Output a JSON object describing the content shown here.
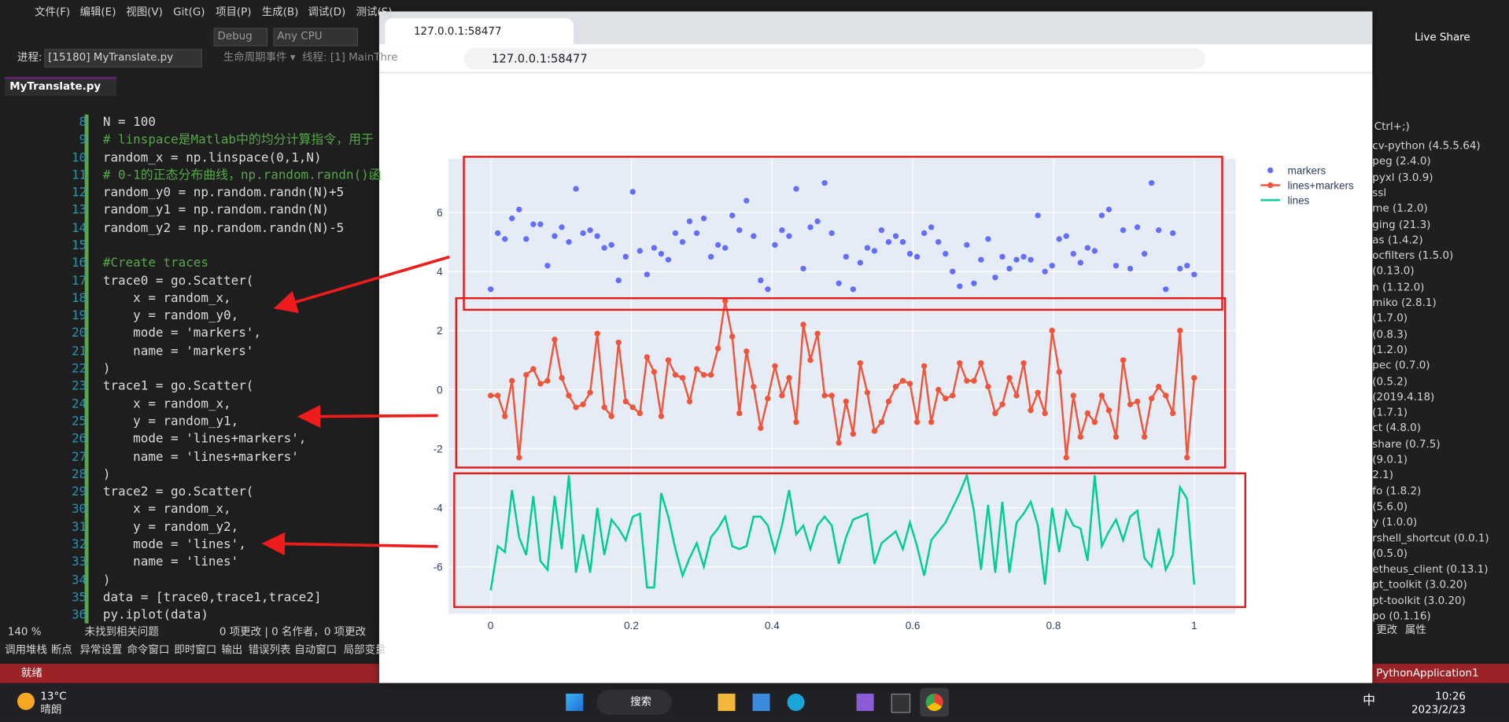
{
  "ide": {
    "menu": [
      "文件(F)",
      "编辑(E)",
      "视图(V)",
      "Git(G)",
      "项目(P)",
      "生成(B)",
      "调试(D)",
      "测试(S)"
    ],
    "config": "Debug",
    "platform": "Any CPU",
    "process_label": "进程:",
    "process": "[15180] MyTranslate.py",
    "thread": "生命周期事件 ▾  线程: [1] MainThre",
    "tab": "MyTranslate.py",
    "code": [
      {
        "line": 8,
        "text": "N = 100"
      },
      {
        "line": 9,
        "text": "# linspace是Matlab中的均分计算指令，用于"
      },
      {
        "line": 10,
        "text": "random_x = np.linspace(0,1,N)"
      },
      {
        "line": 11,
        "text": "# 0-1的正态分布曲线，np.random.randn()函"
      },
      {
        "line": 12,
        "text": "random_y0 = np.random.randn(N)+5"
      },
      {
        "line": 13,
        "text": "random_y1 = np.random.randn(N)"
      },
      {
        "line": 14,
        "text": "random_y2 = np.random.randn(N)-5"
      },
      {
        "line": 15
      },
      {
        "line": 16,
        "text": "#Create traces"
      },
      {
        "line": 17,
        "text": "trace0 = go.Scatter("
      },
      {
        "line": 18,
        "text": "    x = random_x,"
      },
      {
        "line": 19,
        "text": "    y = random_y0,"
      },
      {
        "line": 20,
        "text": "    mode = 'markers',"
      },
      {
        "line": 21,
        "text": "    name = 'markers'"
      },
      {
        "line": 22,
        "text": ")"
      },
      {
        "line": 23,
        "text": "trace1 = go.Scatter("
      },
      {
        "line": 24,
        "text": "    x = random_x,"
      },
      {
        "line": 25,
        "text": "    y = random_y1,"
      },
      {
        "line": 26,
        "text": "    mode = 'lines+markers',"
      },
      {
        "line": 27,
        "text": "    name = 'lines+markers'"
      },
      {
        "line": 28,
        "text": ")"
      },
      {
        "line": 29,
        "text": "trace2 = go.Scatter("
      },
      {
        "line": 30,
        "text": "    x = random_x,"
      },
      {
        "line": 31,
        "text": "    y = random_y2,"
      },
      {
        "line": 32,
        "text": "    mode = 'lines',"
      },
      {
        "line": 33,
        "text": "    name = 'lines'"
      },
      {
        "line": 34,
        "text": ")"
      },
      {
        "line": 35,
        "text": "data = [trace0,trace1,trace2]"
      },
      {
        "line": 36,
        "text": "py.iplot(data)"
      }
    ],
    "zoom": "140 %",
    "issues": "未找到相关问题",
    "changes": "0 项更改 | 0 名作者，0 项更改",
    "bottom_tabs": [
      "调用堆栈",
      "断点",
      "异常设置",
      "命令窗口",
      "即时窗口",
      "输出",
      "错误列表",
      "自动窗口",
      "局部变量"
    ],
    "status": "就绪",
    "live_share": "Live Share",
    "search_hint": "Ctrl+;)",
    "packages": [
      "cv-python (4.5.5.64)",
      "peg (2.4.0)",
      "pyxl (3.0.9)",
      "ssl",
      "me (1.2.0)",
      "ging (21.3)",
      "as (1.4.2)",
      "ocfilters (1.5.0)",
      "(0.13.0)",
      "n (1.12.0)",
      "miko (2.8.1)",
      "(1.7.0)",
      "(0.8.3)",
      "(1.2.0)",
      "pec (0.7.0)",
      "(0.5.2)",
      "(2019.4.18)",
      "(1.7.1)",
      "ct (4.8.0)",
      "share (0.7.5)",
      "(9.0.1)",
      "2.1)",
      "fo (1.8.2)",
      "(5.6.0)",
      "y (1.0.0)",
      "rshell_shortcut (0.0.1)",
      "(0.5.0)",
      "etheus_client (0.13.1)",
      "pt_toolkit (3.0.20)",
      "pt-toolkit (3.0.20)",
      "po (0.1.16)"
    ],
    "panel_tabs": [
      "更改",
      "属性"
    ],
    "project": "PythonApplication1"
  },
  "browser": {
    "tab_title": "127.0.0.1:58477",
    "url": "127.0.0.1:58477"
  },
  "chart_data": {
    "type": "scatter",
    "x": [
      0,
      0.0101,
      0.0202,
      0.0303,
      0.0404,
      0.0505,
      0.0606,
      0.0707,
      0.0808,
      0.0909,
      0.101,
      0.1111,
      0.1212,
      0.1313,
      0.1414,
      0.1515,
      0.1616,
      0.1717,
      0.1818,
      0.1919,
      0.202,
      0.2121,
      0.2222,
      0.2323,
      0.2424,
      0.2525,
      0.2626,
      0.2727,
      0.2828,
      0.2929,
      0.303,
      0.3131,
      0.3232,
      0.3333,
      0.3434,
      0.3535,
      0.3636,
      0.3737,
      0.3838,
      0.3939,
      0.404,
      0.4141,
      0.4242,
      0.4343,
      0.4444,
      0.4545,
      0.4646,
      0.4747,
      0.4848,
      0.4949,
      0.5051,
      0.5152,
      0.5253,
      0.5354,
      0.5455,
      0.5556,
      0.5657,
      0.5758,
      0.5859,
      0.596,
      0.6061,
      0.6162,
      0.6263,
      0.6364,
      0.6465,
      0.6566,
      0.6667,
      0.6768,
      0.6869,
      0.697,
      0.7071,
      0.7172,
      0.7273,
      0.7374,
      0.7475,
      0.7576,
      0.7677,
      0.7778,
      0.7879,
      0.798,
      0.8081,
      0.8182,
      0.8283,
      0.8384,
      0.8485,
      0.8586,
      0.8687,
      0.8788,
      0.8889,
      0.899,
      0.9091,
      0.9192,
      0.9293,
      0.9394,
      0.9495,
      0.9596,
      0.9697,
      0.9798,
      0.9899,
      1
    ],
    "series": [
      {
        "name": "markers",
        "mode": "markers",
        "color": "#636efa",
        "values": [
          3.4,
          5.3,
          5.1,
          5.8,
          6.1,
          5.1,
          5.6,
          5.6,
          4.2,
          5.2,
          5.5,
          5.0,
          6.8,
          5.3,
          5.4,
          5.2,
          4.8,
          4.9,
          3.7,
          4.5,
          6.7,
          4.7,
          3.9,
          4.8,
          4.6,
          4.4,
          5.3,
          5.0,
          5.7,
          5.3,
          5.8,
          4.5,
          4.9,
          4.8,
          5.9,
          5.4,
          6.4,
          5.2,
          3.7,
          3.4,
          4.9,
          5.4,
          5.2,
          6.8,
          4.1,
          5.5,
          5.7,
          7.0,
          5.3,
          3.6,
          4.5,
          3.4,
          4.3,
          4.8,
          4.7,
          5.4,
          5.0,
          5.2,
          5.0,
          4.6,
          4.5,
          5.3,
          5.5,
          5.0,
          4.6,
          4.0,
          3.5,
          4.9,
          3.6,
          4.4,
          5.1,
          3.8,
          4.5,
          4.1,
          4.4,
          4.5,
          4.4,
          5.9,
          4.0,
          4.2,
          5.1,
          5.2,
          4.6,
          4.3,
          4.8,
          4.7,
          5.9,
          6.1,
          4.2,
          5.4,
          4.1,
          5.5,
          4.6,
          7.0,
          5.4,
          3.4,
          5.3,
          4.1,
          4.2,
          3.9
        ]
      },
      {
        "name": "lines+markers",
        "mode": "lines+markers",
        "color": "#ef553b",
        "values": [
          -0.2,
          -0.2,
          -0.9,
          0.3,
          -2.3,
          0.5,
          0.7,
          0.2,
          0.3,
          1.7,
          0.4,
          -0.2,
          -0.6,
          -0.5,
          -0.1,
          1.9,
          -0.6,
          -0.9,
          1.6,
          -0.4,
          -0.6,
          -0.8,
          1.1,
          0.6,
          -0.9,
          1.0,
          0.5,
          0.4,
          -0.4,
          0.7,
          0.5,
          0.5,
          1.4,
          3.0,
          1.8,
          -0.8,
          1.3,
          0.1,
          -1.3,
          -0.3,
          0.8,
          -0.2,
          0.4,
          -1.1,
          2.2,
          1.0,
          1.9,
          -0.2,
          -0.2,
          -1.8,
          -0.4,
          -1.5,
          0.9,
          -0.1,
          -1.4,
          -1.1,
          -0.4,
          0.1,
          0.3,
          0.2,
          -1.1,
          0.8,
          -1.1,
          0.0,
          -0.3,
          -0.2,
          0.9,
          0.3,
          0.3,
          0.9,
          0.1,
          -0.8,
          -0.5,
          0.4,
          -0.2,
          0.9,
          -0.7,
          -0.1,
          -0.8,
          2.0,
          0.6,
          -2.3,
          -0.2,
          -1.6,
          -0.8,
          -1.1,
          -0.2,
          -0.7,
          -1.6,
          1.0,
          -0.5,
          -0.4,
          -1.6,
          -0.3,
          0.1,
          -0.2,
          -0.8,
          2.0,
          -2.3,
          0.4
        ]
      },
      {
        "name": "lines",
        "mode": "lines",
        "color": "#00cc96",
        "values": [
          -6.8,
          -5.3,
          -5.5,
          -3.4,
          -5.0,
          -5.6,
          -3.6,
          -5.8,
          -6.1,
          -3.6,
          -5.4,
          -2.9,
          -6.2,
          -4.9,
          -6.2,
          -4.0,
          -5.6,
          -4.4,
          -4.7,
          -5.1,
          -4.3,
          -4.2,
          -6.7,
          -6.7,
          -3.5,
          -4.3,
          -5.4,
          -6.3,
          -5.7,
          -5.2,
          -6.0,
          -5.0,
          -4.7,
          -4.3,
          -5.3,
          -5.4,
          -5.3,
          -4.3,
          -4.3,
          -4.6,
          -5.5,
          -4.6,
          -3.4,
          -4.9,
          -4.6,
          -5.4,
          -4.6,
          -4.3,
          -4.6,
          -5.9,
          -5.0,
          -4.4,
          -4.3,
          -4.2,
          -5.9,
          -5.2,
          -5.0,
          -4.8,
          -5.4,
          -4.5,
          -5.3,
          -6.3,
          -5.1,
          -4.8,
          -4.5,
          -4.0,
          -3.5,
          -2.9,
          -4.1,
          -6.1,
          -3.9,
          -6.2,
          -3.8,
          -6.2,
          -4.5,
          -4.2,
          -3.8,
          -4.6,
          -6.6,
          -4.0,
          -5.5,
          -4.1,
          -4.6,
          -4.7,
          -5.8,
          -2.9,
          -5.3,
          -4.8,
          -4.4,
          -5.1,
          -4.3,
          -4.1,
          -5.7,
          -6.0,
          -4.7,
          -6.1,
          -5.6,
          -3.3,
          -3.7,
          -6.6
        ]
      }
    ],
    "xlim": [
      -0.06,
      1.059
    ],
    "ylim": [
      -7.59,
      7.82
    ],
    "xticks": [
      0,
      0.2,
      0.4,
      0.6,
      0.8,
      1
    ],
    "yticks": [
      -6,
      -4,
      -2,
      0,
      2,
      4,
      6
    ],
    "grid": true,
    "legend": "right"
  },
  "taskbar": {
    "temp": "13°C",
    "weather": "晴朗",
    "search": "搜索",
    "ime": "中",
    "time": "10:26",
    "date": "2023/2/23"
  }
}
